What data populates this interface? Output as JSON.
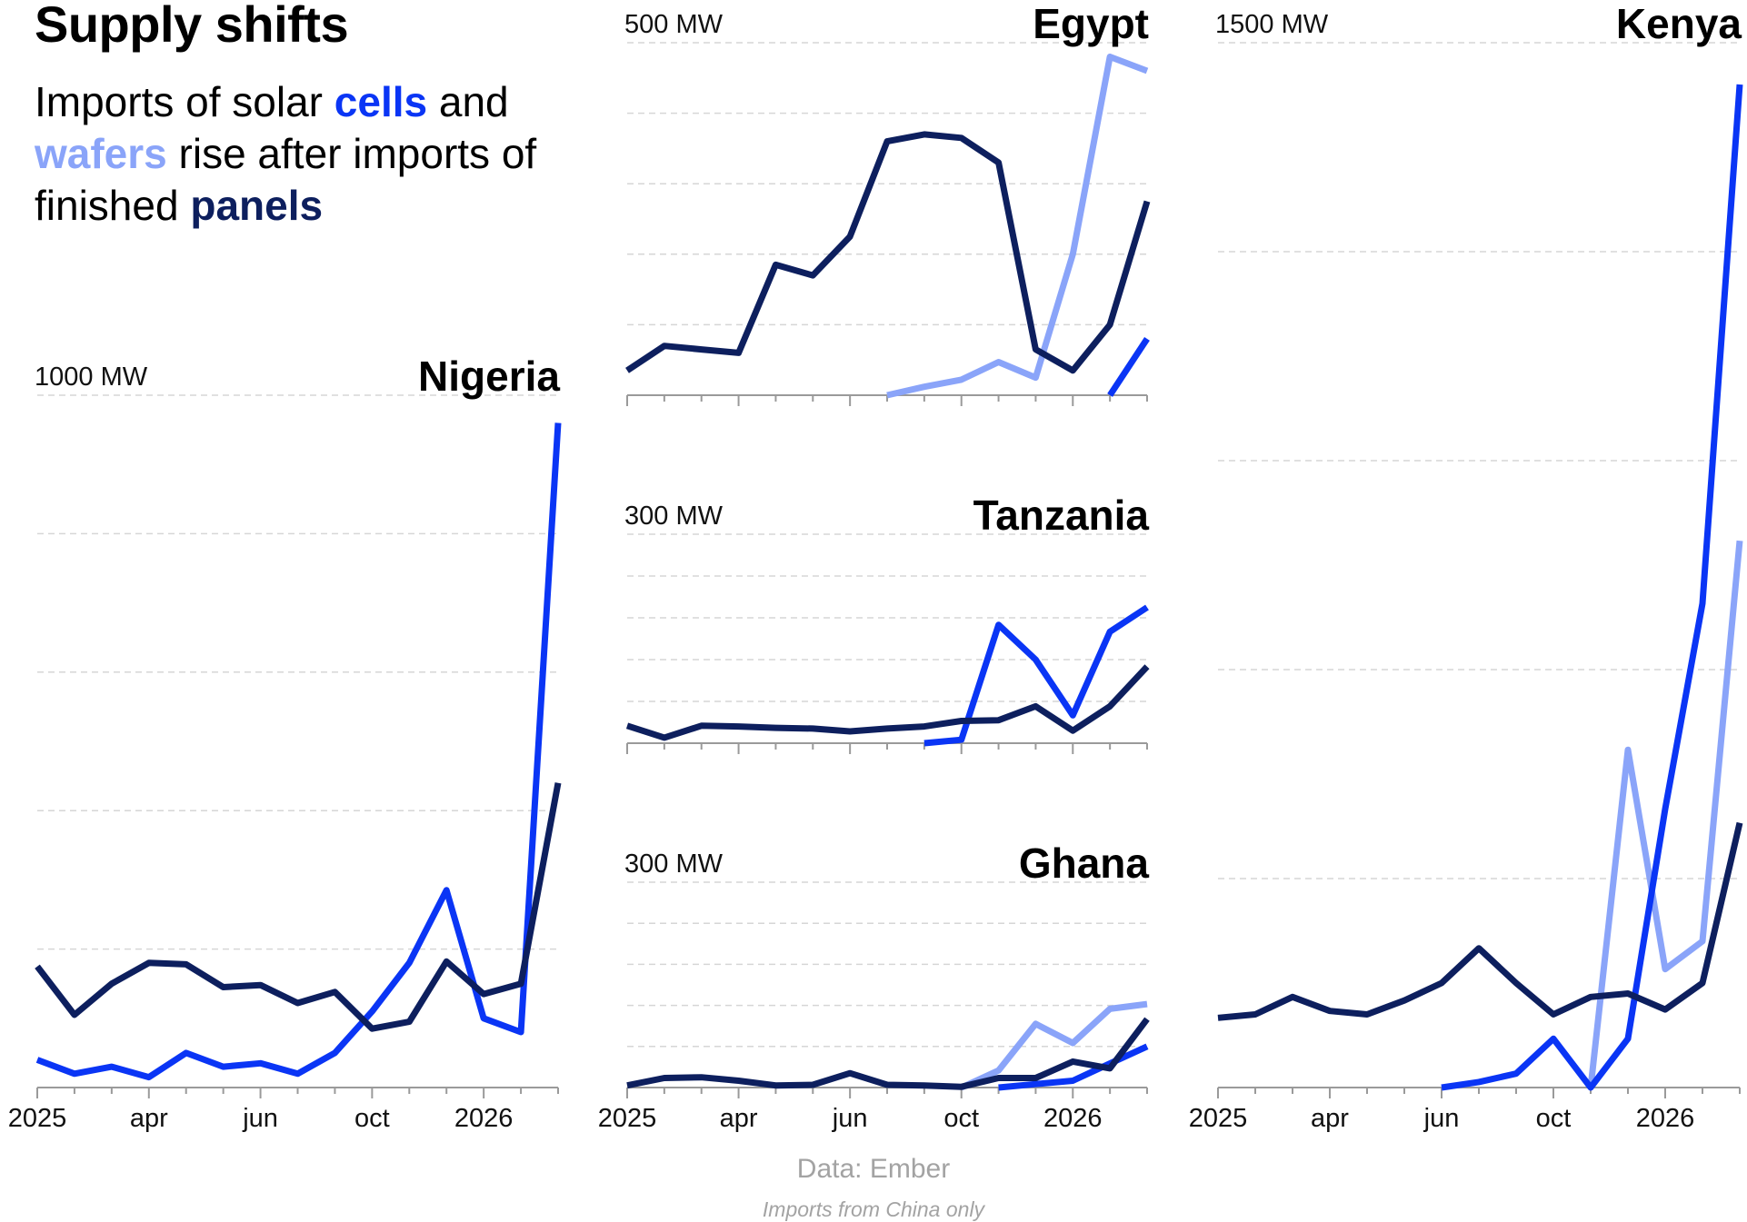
{
  "title": "Supply shifts",
  "subtitle": {
    "t1": "Imports of solar ",
    "cells": "cells",
    "t2": " and ",
    "wafers": "wafers",
    "t3": " rise after imports of finished ",
    "panels": "panels"
  },
  "colors": {
    "cells": "#0a35f5",
    "wafers": "#8aa4f9",
    "panels": "#0d1f5e"
  },
  "source": "Data: Ember",
  "note": "Imports from China only",
  "chart_data": [
    {
      "type": "line",
      "title": "Nigeria",
      "unit_label": "1000 MW",
      "ylim": [
        0,
        1000
      ],
      "x_tick_labels": [
        "2025",
        "apr",
        "jun",
        "oct",
        "2026"
      ],
      "x": [
        "2025-01",
        "2025-02",
        "2025-03",
        "2025-04",
        "2025-05",
        "2025-06",
        "2025-07",
        "2025-08",
        "2025-09",
        "2025-10",
        "2025-11",
        "2025-12",
        "2026-01",
        "2026-02",
        "2026-03"
      ],
      "series": [
        {
          "key": "cells",
          "values": [
            40,
            20,
            30,
            15,
            50,
            30,
            35,
            20,
            50,
            110,
            180,
            285,
            100,
            80,
            960
          ]
        },
        {
          "key": "wafers",
          "values": [
            null,
            null,
            null,
            null,
            null,
            null,
            null,
            null,
            null,
            null,
            null,
            null,
            null,
            null,
            null
          ]
        },
        {
          "key": "panels",
          "values": [
            175,
            105,
            150,
            180,
            178,
            145,
            148,
            122,
            138,
            85,
            95,
            182,
            135,
            150,
            440
          ]
        }
      ]
    },
    {
      "type": "line",
      "title": "Egypt",
      "unit_label": "500 MW",
      "ylim": [
        0,
        500
      ],
      "x_tick_labels": [
        "2025",
        "apr",
        "jun",
        "oct",
        "2026"
      ],
      "x": [
        "2025-01",
        "2025-02",
        "2025-03",
        "2025-04",
        "2025-05",
        "2025-06",
        "2025-07",
        "2025-08",
        "2025-09",
        "2025-10",
        "2025-11",
        "2025-12",
        "2026-01",
        "2026-02",
        "2026-03"
      ],
      "series": [
        {
          "key": "cells",
          "values": [
            null,
            null,
            null,
            null,
            null,
            null,
            null,
            null,
            null,
            null,
            null,
            null,
            null,
            0,
            80
          ]
        },
        {
          "key": "wafers",
          "values": [
            null,
            null,
            null,
            null,
            null,
            null,
            null,
            0,
            12,
            22,
            47,
            25,
            200,
            480,
            460
          ]
        },
        {
          "key": "panels",
          "values": [
            35,
            70,
            65,
            60,
            185,
            170,
            225,
            360,
            370,
            365,
            330,
            65,
            35,
            100,
            275
          ]
        }
      ]
    },
    {
      "type": "line",
      "title": "Tanzania",
      "unit_label": "300 MW",
      "ylim": [
        0,
        300
      ],
      "x_tick_labels": [
        "2025",
        "apr",
        "jun",
        "oct",
        "2026"
      ],
      "x": [
        "2025-01",
        "2025-02",
        "2025-03",
        "2025-04",
        "2025-05",
        "2025-06",
        "2025-07",
        "2025-08",
        "2025-09",
        "2025-10",
        "2025-11",
        "2025-12",
        "2026-01",
        "2026-02",
        "2026-03"
      ],
      "series": [
        {
          "key": "cells",
          "values": [
            null,
            null,
            null,
            null,
            null,
            null,
            null,
            null,
            0,
            5,
            170,
            120,
            40,
            160,
            195
          ]
        },
        {
          "key": "wafers",
          "values": [
            null,
            null,
            null,
            null,
            null,
            null,
            null,
            null,
            null,
            null,
            null,
            null,
            null,
            null,
            null
          ]
        },
        {
          "key": "panels",
          "values": [
            25,
            8,
            25,
            24,
            22,
            21,
            17,
            21,
            24,
            32,
            33,
            53,
            18,
            53,
            110
          ]
        }
      ]
    },
    {
      "type": "line",
      "title": "Ghana",
      "unit_label": "300 MW",
      "ylim": [
        0,
        300
      ],
      "x_tick_labels": [
        "2025",
        "apr",
        "jun",
        "oct",
        "2026"
      ],
      "x": [
        "2025-01",
        "2025-02",
        "2025-03",
        "2025-04",
        "2025-05",
        "2025-06",
        "2025-07",
        "2025-08",
        "2025-09",
        "2025-10",
        "2025-11",
        "2025-12",
        "2026-01",
        "2026-02",
        "2026-03"
      ],
      "series": [
        {
          "key": "cells",
          "values": [
            null,
            null,
            null,
            null,
            null,
            null,
            null,
            null,
            null,
            null,
            0,
            5,
            10,
            35,
            60
          ]
        },
        {
          "key": "wafers",
          "values": [
            null,
            null,
            null,
            null,
            null,
            null,
            null,
            null,
            null,
            0,
            25,
            93,
            65,
            115,
            122
          ]
        },
        {
          "key": "panels",
          "values": [
            3,
            14,
            15,
            10,
            3,
            4,
            21,
            4,
            3,
            1,
            14,
            14,
            38,
            28,
            100
          ]
        }
      ]
    },
    {
      "type": "line",
      "title": "Kenya",
      "unit_label": "1500 MW",
      "ylim": [
        0,
        1500
      ],
      "x_tick_labels": [
        "2025",
        "apr",
        "jun",
        "oct",
        "2026"
      ],
      "x": [
        "2025-01",
        "2025-02",
        "2025-03",
        "2025-04",
        "2025-05",
        "2025-06",
        "2025-07",
        "2025-08",
        "2025-09",
        "2025-10",
        "2025-11",
        "2025-12",
        "2026-01",
        "2026-02",
        "2026-03"
      ],
      "series": [
        {
          "key": "cells",
          "values": [
            null,
            null,
            null,
            null,
            null,
            null,
            0,
            8,
            20,
            70,
            0,
            70,
            400,
            695,
            1440
          ]
        },
        {
          "key": "wafers",
          "values": [
            null,
            null,
            null,
            null,
            null,
            null,
            null,
            null,
            null,
            null,
            0,
            485,
            170,
            210,
            785
          ]
        },
        {
          "key": "panels",
          "values": [
            100,
            105,
            130,
            110,
            105,
            125,
            150,
            200,
            150,
            105,
            130,
            135,
            112,
            150,
            380
          ]
        }
      ]
    }
  ]
}
